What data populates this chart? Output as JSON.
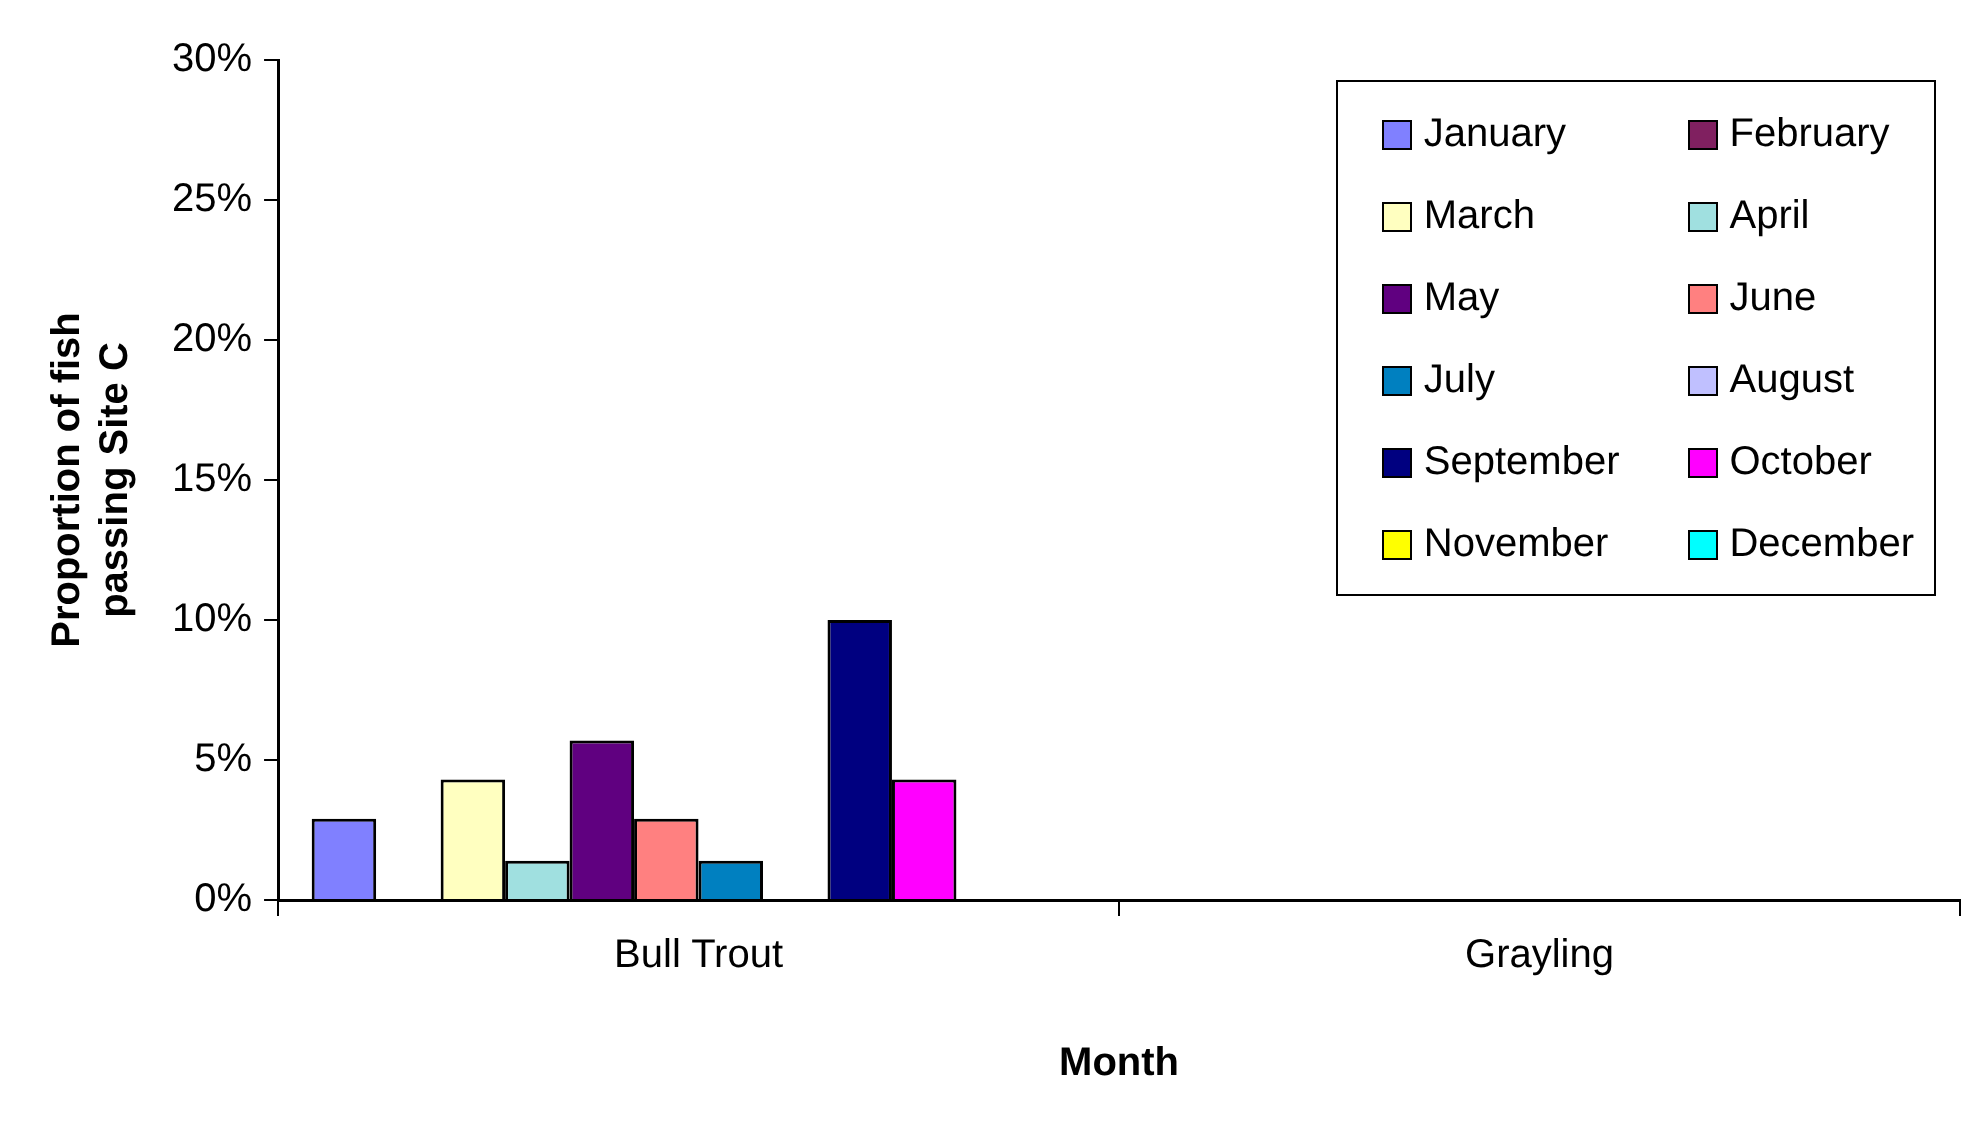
{
  "chart_data": {
    "type": "bar",
    "xlabel": "Month",
    "ylabel": "Proportion of fish passing Site C",
    "categories": [
      "Bull Trout",
      "Grayling"
    ],
    "series": [
      {
        "name": "January",
        "color": "#8080ff",
        "values": [
          2.9,
          0
        ]
      },
      {
        "name": "February",
        "color": "#802060",
        "values": [
          0,
          0
        ]
      },
      {
        "name": "March",
        "color": "#ffffc0",
        "values": [
          4.3,
          0
        ]
      },
      {
        "name": "April",
        "color": "#a0e0e0",
        "values": [
          1.4,
          0
        ]
      },
      {
        "name": "May",
        "color": "#600080",
        "values": [
          5.7,
          0
        ]
      },
      {
        "name": "June",
        "color": "#ff8080",
        "values": [
          2.9,
          0
        ]
      },
      {
        "name": "July",
        "color": "#0080c0",
        "values": [
          1.4,
          0
        ]
      },
      {
        "name": "August",
        "color": "#c0c0ff",
        "values": [
          0,
          0
        ]
      },
      {
        "name": "September",
        "color": "#000080",
        "values": [
          10,
          0
        ]
      },
      {
        "name": "October",
        "color": "#ff00ff",
        "values": [
          4.3,
          0
        ]
      },
      {
        "name": "November",
        "color": "#ffff00",
        "values": [
          0,
          0
        ]
      },
      {
        "name": "December",
        "color": "#00ffff",
        "values": [
          0,
          0
        ]
      }
    ],
    "ylim": [
      0,
      30
    ],
    "yticks": [
      {
        "value": 0,
        "label": "0%"
      },
      {
        "value": 5,
        "label": "5%"
      },
      {
        "value": 10,
        "label": "10%"
      },
      {
        "value": 15,
        "label": "15%"
      },
      {
        "value": 20,
        "label": "20%"
      },
      {
        "value": 25,
        "label": "25%"
      },
      {
        "value": 30,
        "label": "30%"
      }
    ],
    "grid": false,
    "legend": "top right"
  }
}
